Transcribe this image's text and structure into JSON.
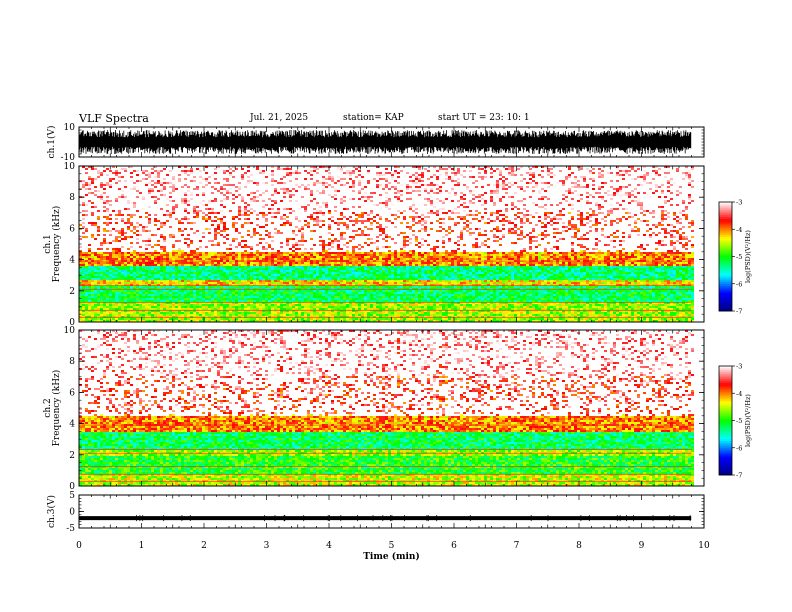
{
  "header": {
    "title": "VLF Spectra",
    "date": "Jul. 21, 2025",
    "station": "station= KAP",
    "start": "start UT =  23: 10: 1"
  },
  "chart_data": [
    {
      "type": "line",
      "name": "ch1-waveform",
      "ylabel": "ch.1(V)",
      "ylim": [
        -10,
        10
      ],
      "yticks": [
        "10",
        "-10"
      ],
      "xlim": [
        0,
        10
      ],
      "data_extent_min": [
        0,
        9.8
      ],
      "description_values": {
        "amplitude_range": [
          -8,
          8
        ]
      }
    },
    {
      "type": "heatmap",
      "name": "ch1-spectrogram",
      "ylabel": "ch.1\nFrequency (kHz)",
      "ylabel_lines": [
        "ch.1",
        "Frequency (kHz)"
      ],
      "ylim": [
        0,
        10
      ],
      "yticks": [
        "0",
        "2",
        "4",
        "6",
        "8",
        "10"
      ],
      "xlim": [
        0,
        10
      ],
      "data_extent_min": [
        0,
        9.8
      ],
      "bands_khz": [
        {
          "from": 0,
          "to": 1.3,
          "level": -4.6
        },
        {
          "from": 1.3,
          "to": 2.3,
          "level": -5.2
        },
        {
          "from": 2.3,
          "to": 2.7,
          "level": -4.3
        },
        {
          "from": 2.7,
          "to": 3.6,
          "level": -5.3
        },
        {
          "from": 3.6,
          "to": 4.6,
          "level": -4.0
        },
        {
          "from": 4.6,
          "to": 7.0,
          "level": -3.6
        },
        {
          "from": 7.0,
          "to": 10,
          "level": -3.2
        }
      ],
      "colorbar": {
        "min": -7,
        "max": -3,
        "ticks": [
          "-3",
          "-4",
          "-5",
          "-6",
          "-7"
        ],
        "label": "log(PSD)(V²/Hz)"
      }
    },
    {
      "type": "heatmap",
      "name": "ch2-spectrogram",
      "ylabel": "ch.2\nFrequency (kHz)",
      "ylabel_lines": [
        "ch.2",
        "Frequency (kHz)"
      ],
      "ylim": [
        0,
        10
      ],
      "yticks": [
        "0",
        "2",
        "4",
        "6",
        "8",
        "10"
      ],
      "xlim": [
        0,
        10
      ],
      "data_extent_min": [
        0,
        9.8
      ],
      "bands_khz": [
        {
          "from": 0,
          "to": 0.8,
          "level": -4.5
        },
        {
          "from": 0.8,
          "to": 1.9,
          "level": -5.0
        },
        {
          "from": 1.9,
          "to": 2.3,
          "level": -4.6
        },
        {
          "from": 2.3,
          "to": 3.4,
          "level": -5.2
        },
        {
          "from": 3.4,
          "to": 4.6,
          "level": -4.0
        },
        {
          "from": 4.6,
          "to": 7.0,
          "level": -3.6
        },
        {
          "from": 7.0,
          "to": 10,
          "level": -3.2
        }
      ],
      "colorbar": {
        "min": -7,
        "max": -3,
        "ticks": [
          "-3",
          "-4",
          "-5",
          "-6",
          "-7"
        ],
        "label": "log(PSD)(V²/Hz)"
      }
    },
    {
      "type": "line",
      "name": "ch3-waveform",
      "ylabel": "ch.3(V)",
      "ylim": [
        -5,
        5
      ],
      "yticks": [
        "5",
        "0",
        "-5"
      ],
      "xlim": [
        0,
        10
      ],
      "data_extent_min": [
        0,
        9.8
      ],
      "description_values": {
        "baseline": -2,
        "amplitude_range": [
          -2.6,
          -1.4
        ]
      }
    }
  ],
  "xaxis": {
    "label": "Time (min)",
    "ticks": [
      "0",
      "1",
      "2",
      "3",
      "4",
      "5",
      "6",
      "7",
      "8",
      "9",
      "10"
    ],
    "range": [
      0,
      10
    ]
  },
  "colors": {
    "cmap": [
      "#000080",
      "#0000ff",
      "#00ffff",
      "#00ff00",
      "#ffff00",
      "#ff0000",
      "#ffffff"
    ],
    "trace": "#000000"
  }
}
